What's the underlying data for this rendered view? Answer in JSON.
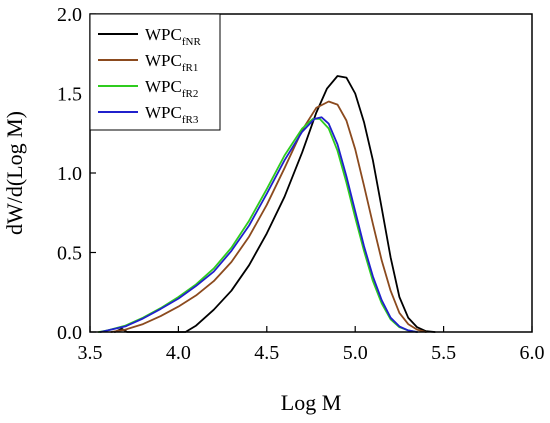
{
  "chart_data": {
    "type": "line",
    "title": "",
    "xlabel": "Log M",
    "ylabel": "dW/d(Log M)",
    "xlim": [
      3.5,
      6.0
    ],
    "ylim": [
      0.0,
      2.0
    ],
    "x_ticks": [
      "3.5",
      "4.0",
      "4.5",
      "5.0",
      "5.5",
      "6.0"
    ],
    "y_ticks": [
      "0.0",
      "0.5",
      "1.0",
      "1.5",
      "2.0"
    ],
    "grid": false,
    "legend_placement": "top-left",
    "series": [
      {
        "name": "WPC",
        "name_sub": "fNR",
        "color": "#000000",
        "points": [
          [
            3.64,
            0.0
          ],
          [
            3.68,
            0.02
          ],
          [
            3.71,
            0.0
          ],
          [
            4.04,
            0.0
          ],
          [
            4.1,
            0.04
          ],
          [
            4.2,
            0.14
          ],
          [
            4.3,
            0.26
          ],
          [
            4.4,
            0.42
          ],
          [
            4.5,
            0.62
          ],
          [
            4.6,
            0.85
          ],
          [
            4.7,
            1.13
          ],
          [
            4.78,
            1.38
          ],
          [
            4.84,
            1.53
          ],
          [
            4.9,
            1.61
          ],
          [
            4.95,
            1.6
          ],
          [
            5.0,
            1.5
          ],
          [
            5.05,
            1.32
          ],
          [
            5.1,
            1.08
          ],
          [
            5.15,
            0.78
          ],
          [
            5.2,
            0.47
          ],
          [
            5.25,
            0.22
          ],
          [
            5.3,
            0.09
          ],
          [
            5.35,
            0.03
          ],
          [
            5.4,
            0.005
          ],
          [
            5.45,
            0.0
          ]
        ]
      },
      {
        "name": "WPC",
        "name_sub": "fR1",
        "color": "#8B4A1E",
        "points": [
          [
            3.62,
            0.0
          ],
          [
            3.7,
            0.015
          ],
          [
            3.8,
            0.05
          ],
          [
            3.9,
            0.1
          ],
          [
            4.0,
            0.16
          ],
          [
            4.1,
            0.23
          ],
          [
            4.2,
            0.32
          ],
          [
            4.3,
            0.44
          ],
          [
            4.4,
            0.6
          ],
          [
            4.5,
            0.8
          ],
          [
            4.6,
            1.03
          ],
          [
            4.7,
            1.27
          ],
          [
            4.78,
            1.41
          ],
          [
            4.85,
            1.45
          ],
          [
            4.9,
            1.43
          ],
          [
            4.95,
            1.33
          ],
          [
            5.0,
            1.15
          ],
          [
            5.05,
            0.92
          ],
          [
            5.1,
            0.68
          ],
          [
            5.15,
            0.45
          ],
          [
            5.2,
            0.26
          ],
          [
            5.25,
            0.12
          ],
          [
            5.3,
            0.05
          ],
          [
            5.35,
            0.015
          ],
          [
            5.4,
            0.0
          ]
        ]
      },
      {
        "name": "WPC",
        "name_sub": "fR2",
        "color": "#2FCC1E",
        "points": [
          [
            3.55,
            0.0
          ],
          [
            3.6,
            0.01
          ],
          [
            3.7,
            0.04
          ],
          [
            3.8,
            0.09
          ],
          [
            3.9,
            0.15
          ],
          [
            4.0,
            0.22
          ],
          [
            4.1,
            0.3
          ],
          [
            4.2,
            0.4
          ],
          [
            4.3,
            0.53
          ],
          [
            4.4,
            0.7
          ],
          [
            4.5,
            0.9
          ],
          [
            4.6,
            1.11
          ],
          [
            4.7,
            1.28
          ],
          [
            4.76,
            1.34
          ],
          [
            4.8,
            1.34
          ],
          [
            4.85,
            1.28
          ],
          [
            4.9,
            1.14
          ],
          [
            4.95,
            0.94
          ],
          [
            5.0,
            0.72
          ],
          [
            5.05,
            0.51
          ],
          [
            5.1,
            0.32
          ],
          [
            5.15,
            0.18
          ],
          [
            5.2,
            0.08
          ],
          [
            5.25,
            0.03
          ],
          [
            5.3,
            0.01
          ],
          [
            5.35,
            0.0
          ]
        ]
      },
      {
        "name": "WPC",
        "name_sub": "fR3",
        "color": "#2020CC",
        "points": [
          [
            3.56,
            0.0
          ],
          [
            3.6,
            0.01
          ],
          [
            3.7,
            0.035
          ],
          [
            3.8,
            0.085
          ],
          [
            3.9,
            0.145
          ],
          [
            4.0,
            0.21
          ],
          [
            4.1,
            0.29
          ],
          [
            4.2,
            0.38
          ],
          [
            4.3,
            0.51
          ],
          [
            4.4,
            0.67
          ],
          [
            4.5,
            0.87
          ],
          [
            4.6,
            1.08
          ],
          [
            4.7,
            1.26
          ],
          [
            4.77,
            1.34
          ],
          [
            4.81,
            1.35
          ],
          [
            4.85,
            1.31
          ],
          [
            4.9,
            1.18
          ],
          [
            4.95,
            0.98
          ],
          [
            5.0,
            0.76
          ],
          [
            5.05,
            0.54
          ],
          [
            5.1,
            0.35
          ],
          [
            5.15,
            0.2
          ],
          [
            5.2,
            0.09
          ],
          [
            5.25,
            0.035
          ],
          [
            5.3,
            0.01
          ],
          [
            5.35,
            0.0
          ]
        ]
      }
    ]
  }
}
